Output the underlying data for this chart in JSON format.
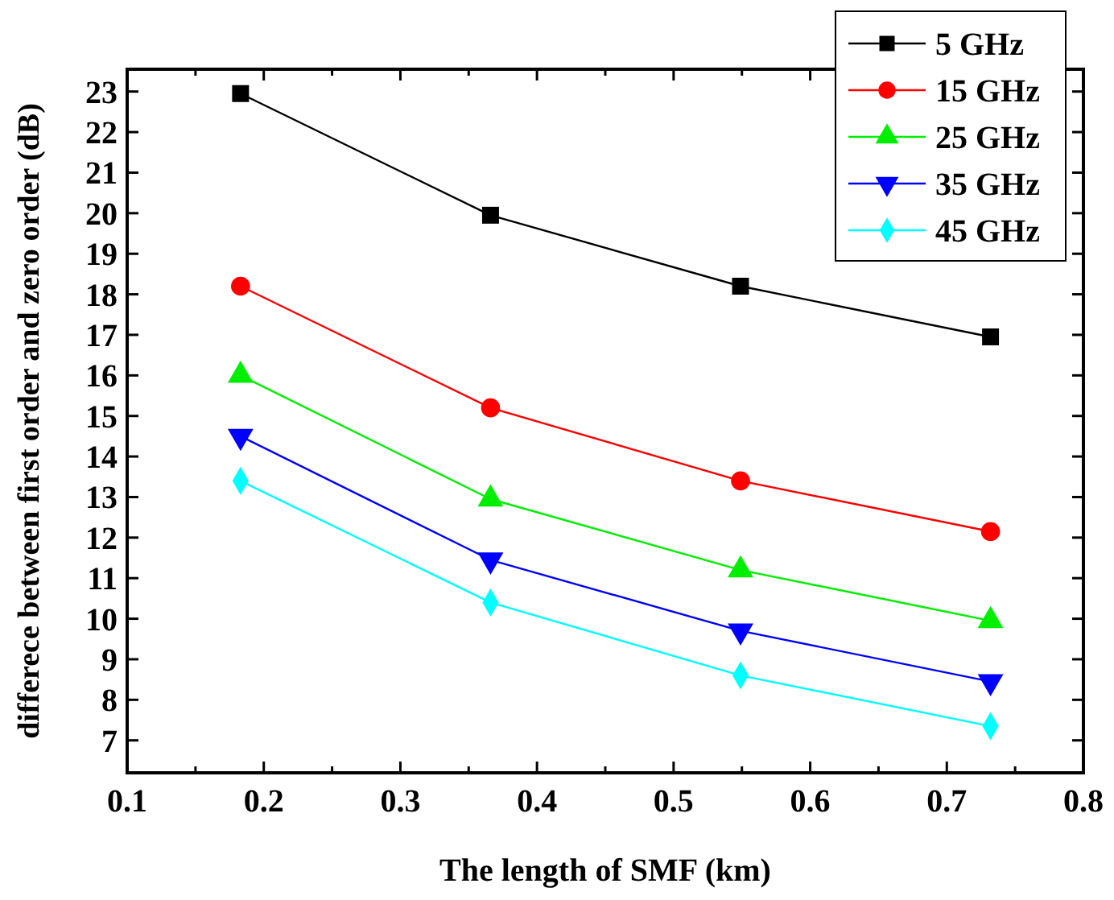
{
  "chart_data": {
    "type": "line",
    "xlabel": "The length of SMF (km)",
    "ylabel": "differece between first order and zero order (dB)",
    "x": [
      0.183,
      0.366,
      0.549,
      0.732
    ],
    "series": [
      {
        "name": "5 GHz",
        "color": "#000000",
        "marker": "square",
        "values": [
          22.95,
          19.95,
          18.2,
          16.95
        ]
      },
      {
        "name": "15 GHz",
        "color": "#ff0000",
        "marker": "circle",
        "values": [
          18.2,
          15.2,
          13.4,
          12.15
        ]
      },
      {
        "name": "25 GHz",
        "color": "#00ee00",
        "marker": "triangle",
        "values": [
          16.0,
          12.95,
          11.2,
          9.95
        ]
      },
      {
        "name": "35 GHz",
        "color": "#0000ff",
        "marker": "triangle-down",
        "values": [
          14.5,
          11.45,
          9.7,
          8.45
        ]
      },
      {
        "name": "45 GHz",
        "color": "#00ffff",
        "marker": "diamond",
        "values": [
          13.4,
          10.4,
          8.6,
          7.35
        ]
      }
    ],
    "xlim": [
      0.1,
      0.8
    ],
    "ylim": [
      6.2,
      23.55
    ],
    "xticks": [
      0.1,
      {
        "value": 0.15,
        "label": null
      },
      0.2,
      {
        "value": 0.25,
        "label": null
      },
      0.3,
      {
        "value": 0.35,
        "label": null
      },
      0.4,
      {
        "value": 0.45,
        "label": null
      },
      0.5,
      {
        "value": 0.55,
        "label": null
      },
      0.6,
      {
        "value": 0.65,
        "label": null
      },
      0.7,
      {
        "value": 0.75,
        "label": null
      },
      0.8
    ],
    "yticks": [
      7,
      8,
      9,
      10,
      11,
      12,
      13,
      14,
      15,
      16,
      17,
      18,
      19,
      20,
      21,
      22,
      23
    ],
    "grid": false,
    "legend": "top right",
    "line_style": "solid"
  }
}
